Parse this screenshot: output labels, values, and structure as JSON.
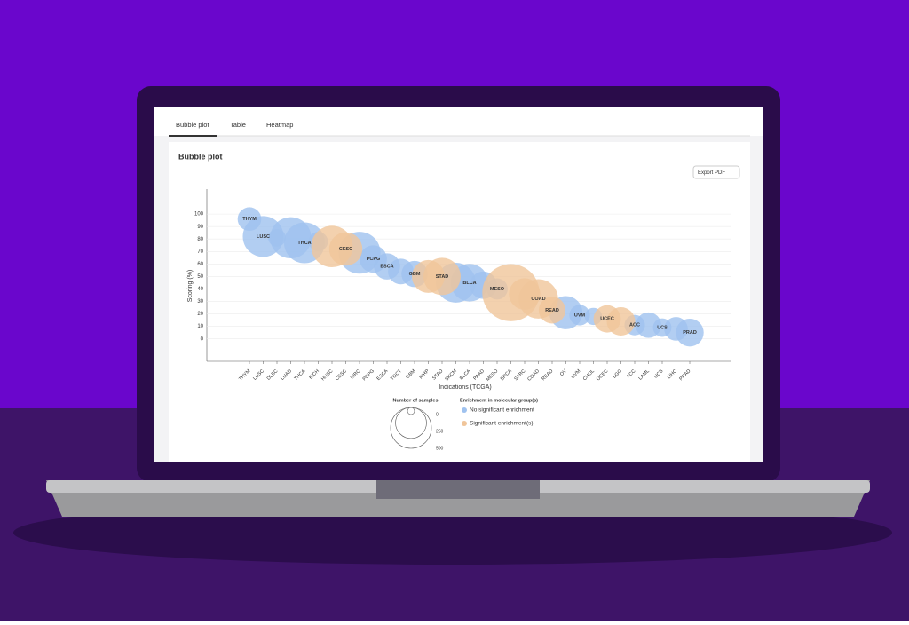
{
  "tabs": [
    "Bubble plot",
    "Table",
    "Heatmap"
  ],
  "panel_title": "Bubble plot",
  "export_button": "Export PDF",
  "chart_data": {
    "type": "bubble",
    "x_label": "Indications (TCGA)",
    "y_label": "Scoring (%)",
    "categories": [
      "THYM",
      "LUSC",
      "DLBC",
      "LUAD",
      "THCA",
      "KICH",
      "HNSC",
      "CESC",
      "KIRC",
      "PCPG",
      "ESCA",
      "TGCT",
      "GBM",
      "KIRP",
      "STAD",
      "SKCM",
      "BLCA",
      "PAAD",
      "MESO",
      "BRCA",
      "SARC",
      "COAD",
      "READ",
      "OV",
      "UVM",
      "CHOL",
      "UCEC",
      "LGG",
      "ACC",
      "LAML",
      "UCS",
      "LIHC",
      "PRAD"
    ],
    "series": [
      {
        "name": "No significant enrichment",
        "color": "#9fc2ef",
        "values": [
          96,
          82,
          81,
          81,
          77,
          78,
          null,
          null,
          69,
          64,
          58,
          54,
          52,
          null,
          null,
          45,
          45,
          43,
          40,
          null,
          null,
          null,
          null,
          21,
          19,
          18,
          null,
          null,
          11,
          11,
          9,
          8,
          5
        ]
      },
      {
        "name": "Significant enrichment(s)",
        "color": "#f0c59a",
        "values": [
          null,
          null,
          null,
          null,
          null,
          null,
          74,
          72,
          null,
          null,
          null,
          null,
          null,
          50,
          50,
          null,
          null,
          null,
          null,
          37,
          36,
          32,
          23,
          null,
          null,
          null,
          16,
          14,
          null,
          null,
          null,
          null,
          null
        ]
      }
    ],
    "sizes": [
      120,
      500,
      48,
      510,
      500,
      66,
      520,
      300,
      530,
      180,
      160,
      150,
      160,
      290,
      400,
      470,
      410,
      180,
      87,
      1100,
      260,
      460,
      170,
      300,
      80,
      45,
      180,
      200,
      79,
      150,
      57,
      120,
      190
    ],
    "bubble_labels": [
      "THYM",
      "LUSC",
      null,
      null,
      "THCA",
      null,
      null,
      "CESC",
      null,
      "PCPG",
      "ESCA",
      null,
      "GBM",
      null,
      "STAD",
      null,
      "BLCA",
      null,
      "MESO",
      null,
      null,
      "COAD",
      "READ",
      null,
      "UVM",
      null,
      "UCEC",
      null,
      "ACC",
      null,
      "UCS",
      null,
      "PRAD"
    ],
    "ylim": [
      -18,
      120
    ],
    "yticks": [
      0,
      10,
      20,
      30,
      40,
      50,
      60,
      70,
      80,
      90,
      100
    ],
    "grid": true,
    "size_legend": {
      "title": "Number of samples",
      "values": [
        0,
        250,
        500
      ]
    },
    "color_legend_title": "Enrichment in molecular group(s)"
  }
}
